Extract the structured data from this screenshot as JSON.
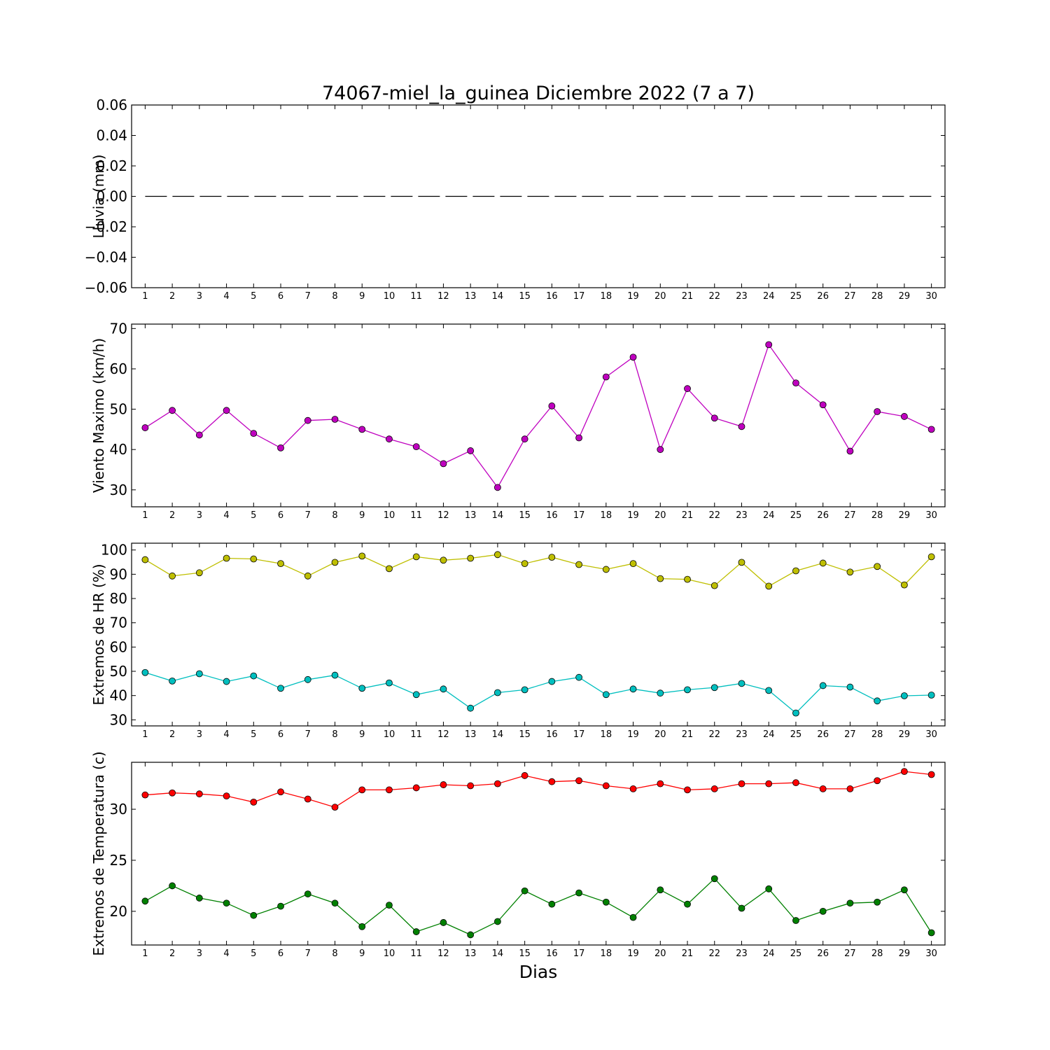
{
  "figure": {
    "title": "74067-miel_la_guinea Diciembre 2022  (7 a 7)",
    "xlabel": "Dias"
  },
  "colors": {
    "lluvia": "#000000",
    "viento": "#bf00bf",
    "hr_max": "#bfbf00",
    "hr_min": "#00bfbf",
    "temp_max": "#ff0000",
    "temp_min": "#008000"
  },
  "chart_data": [
    {
      "type": "line",
      "ylabel": "Lluvia (mm)",
      "x": [
        1,
        2,
        3,
        4,
        5,
        6,
        7,
        8,
        9,
        10,
        11,
        12,
        13,
        14,
        15,
        16,
        17,
        18,
        19,
        20,
        21,
        22,
        23,
        24,
        25,
        26,
        27,
        28,
        29,
        30
      ],
      "ylim": [
        -0.06,
        0.06
      ],
      "yticks": [
        0.06,
        0.04,
        0.02,
        0.0,
        -0.02,
        -0.04,
        -0.06
      ],
      "ytick_labels": [
        "0.06",
        "0.04",
        "0.02",
        "0.00",
        "−0.02",
        "−0.04",
        "−0.06"
      ],
      "series": [
        {
          "color_key": "lluvia",
          "style": "dashed",
          "markers": false,
          "values": [
            0,
            0,
            0,
            0,
            0,
            0,
            0,
            0,
            0,
            0,
            0,
            0,
            0,
            0,
            0,
            0,
            0,
            0,
            0,
            0,
            0,
            0,
            0,
            0,
            0,
            0,
            0,
            0,
            0,
            0
          ]
        }
      ]
    },
    {
      "type": "line",
      "ylabel": "Viento Maximo (km/h)",
      "x": [
        1,
        2,
        3,
        4,
        5,
        6,
        7,
        8,
        9,
        10,
        11,
        12,
        13,
        14,
        15,
        16,
        17,
        18,
        19,
        20,
        21,
        22,
        23,
        24,
        25,
        26,
        27,
        28,
        29,
        30
      ],
      "ylim": [
        25.8,
        71.1
      ],
      "yticks": [
        30,
        40,
        50,
        60,
        70
      ],
      "ytick_labels": [
        "30",
        "40",
        "50",
        "60",
        "70"
      ],
      "series": [
        {
          "color_key": "viento",
          "style": "solid",
          "markers": true,
          "values": [
            45.4,
            49.7,
            43.6,
            49.7,
            44.0,
            40.4,
            47.2,
            47.5,
            45.0,
            42.6,
            40.7,
            36.5,
            39.7,
            30.6,
            42.6,
            50.8,
            42.9,
            58.0,
            62.9,
            40.0,
            55.1,
            47.8,
            45.7,
            66.0,
            56.5,
            51.1,
            39.6,
            49.4,
            48.2,
            45.0
          ]
        }
      ]
    },
    {
      "type": "line",
      "ylabel": "Extremos de HR (%)",
      "x": [
        1,
        2,
        3,
        4,
        5,
        6,
        7,
        8,
        9,
        10,
        11,
        12,
        13,
        14,
        15,
        16,
        17,
        18,
        19,
        20,
        21,
        22,
        23,
        24,
        25,
        26,
        27,
        28,
        29,
        30
      ],
      "ylim": [
        27.5,
        102.8
      ],
      "yticks": [
        30,
        40,
        50,
        60,
        70,
        80,
        90,
        100
      ],
      "ytick_labels": [
        "30",
        "40",
        "50",
        "60",
        "70",
        "80",
        "90",
        "100"
      ],
      "series": [
        {
          "color_key": "hr_max",
          "style": "solid",
          "markers": true,
          "values": [
            96.0,
            89.3,
            90.6,
            96.6,
            96.3,
            94.4,
            89.3,
            94.9,
            97.5,
            92.3,
            97.2,
            95.8,
            96.6,
            98.1,
            94.4,
            97.0,
            94.0,
            92.0,
            94.4,
            88.2,
            87.9,
            85.3,
            94.9,
            85.1,
            91.4,
            94.6,
            90.9,
            93.2,
            85.6,
            97.2
          ]
        },
        {
          "color_key": "hr_min",
          "style": "solid",
          "markers": true,
          "values": [
            49.5,
            46.0,
            49.0,
            45.8,
            48.1,
            43.0,
            46.6,
            48.4,
            43.0,
            45.2,
            40.4,
            42.7,
            34.8,
            41.2,
            42.4,
            45.8,
            47.5,
            40.4,
            42.7,
            41.0,
            42.4,
            43.3,
            45.0,
            42.1,
            32.8,
            44.1,
            43.5,
            37.8,
            39.9,
            40.2
          ]
        }
      ]
    },
    {
      "type": "line",
      "ylabel": "Extremos de Temperatura (c)",
      "x": [
        1,
        2,
        3,
        4,
        5,
        6,
        7,
        8,
        9,
        10,
        11,
        12,
        13,
        14,
        15,
        16,
        17,
        18,
        19,
        20,
        21,
        22,
        23,
        24,
        25,
        26,
        27,
        28,
        29,
        30
      ],
      "ylim": [
        16.7,
        34.6
      ],
      "yticks": [
        20,
        25,
        30
      ],
      "ytick_labels": [
        "20",
        "25",
        "30"
      ],
      "series": [
        {
          "color_key": "temp_max",
          "style": "solid",
          "markers": true,
          "values": [
            31.4,
            31.6,
            31.5,
            31.3,
            30.7,
            31.7,
            31.0,
            30.2,
            31.9,
            31.9,
            32.1,
            32.4,
            32.3,
            32.5,
            33.3,
            32.7,
            32.8,
            32.3,
            32.0,
            32.5,
            31.9,
            32.0,
            32.5,
            32.5,
            32.6,
            32.0,
            32.0,
            32.8,
            33.7,
            33.4
          ]
        },
        {
          "color_key": "temp_min",
          "style": "solid",
          "markers": true,
          "values": [
            21.0,
            22.5,
            21.3,
            20.8,
            19.6,
            20.5,
            21.7,
            20.8,
            18.5,
            20.6,
            18.0,
            18.9,
            17.7,
            19.0,
            22.0,
            20.7,
            21.8,
            20.9,
            19.4,
            22.1,
            20.7,
            23.2,
            20.3,
            22.2,
            19.1,
            20.0,
            20.8,
            20.9,
            22.1,
            17.9
          ]
        }
      ]
    }
  ]
}
